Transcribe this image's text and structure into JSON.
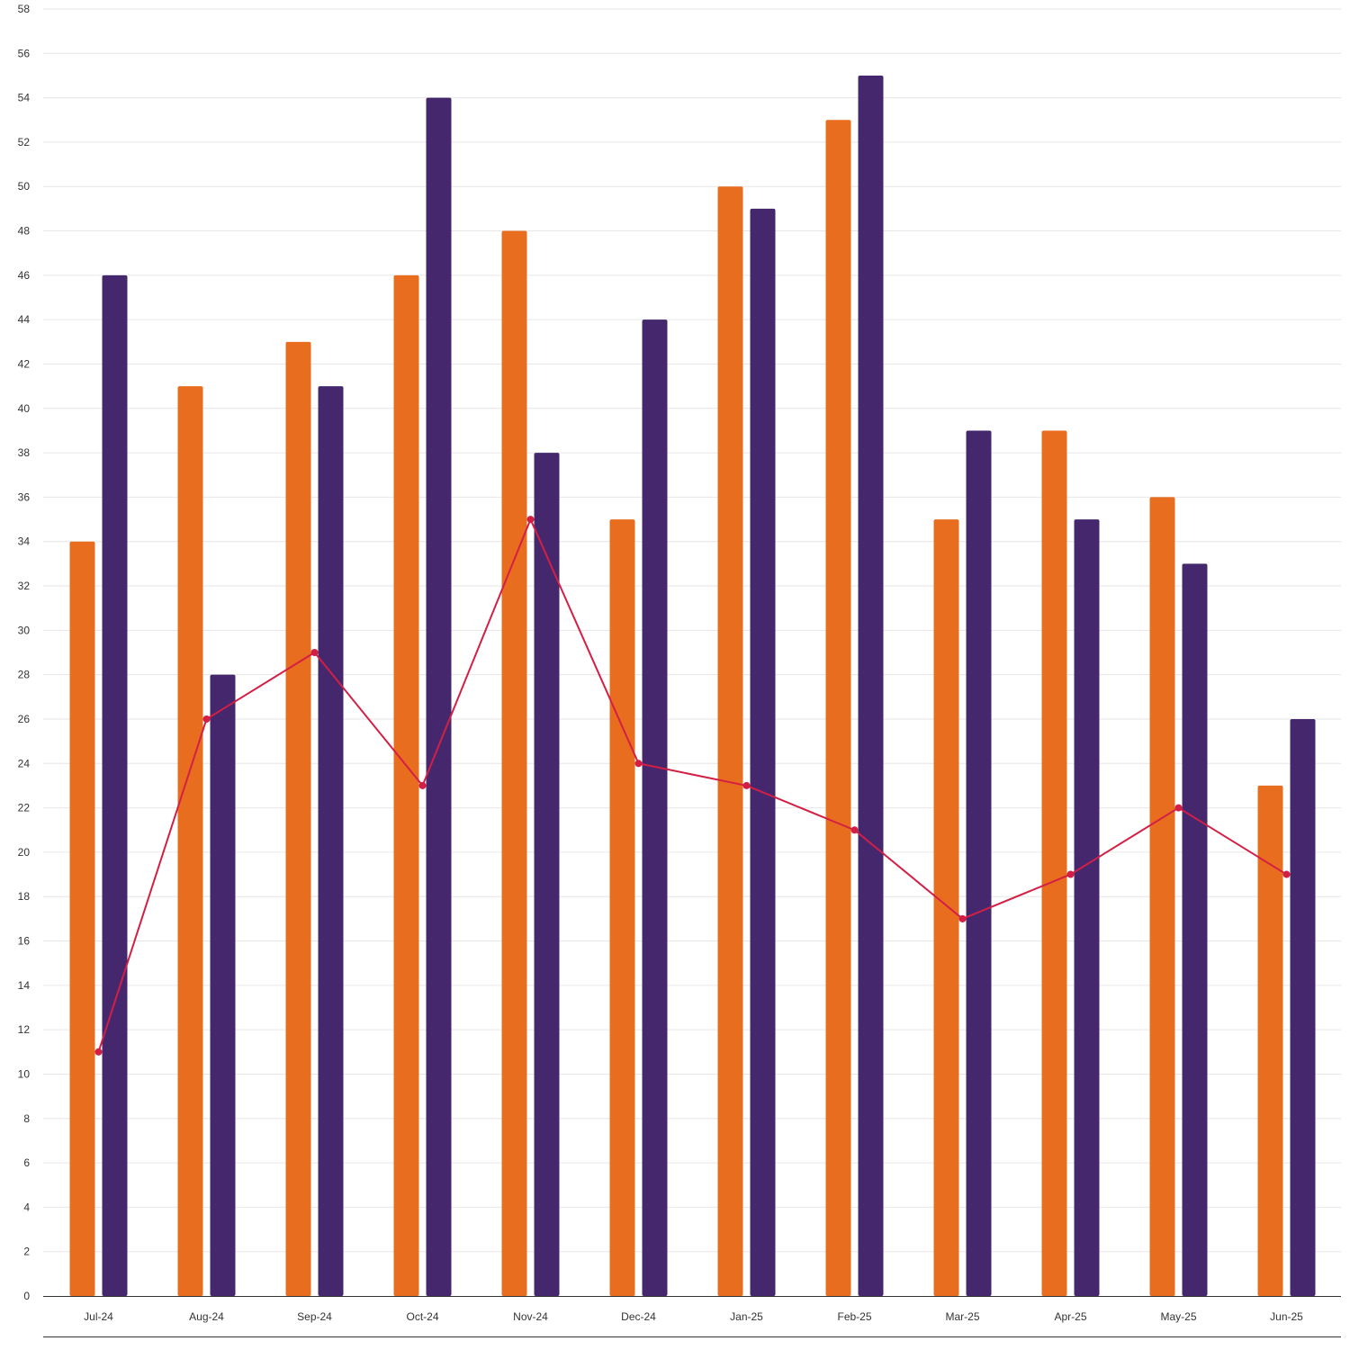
{
  "chart_data": {
    "type": "bar",
    "categories": [
      "Jul-24",
      "Aug-24",
      "Sep-24",
      "Oct-24",
      "Nov-24",
      "Dec-24",
      "Jan-25",
      "Feb-25",
      "Mar-25",
      "Apr-25",
      "May-25",
      "Jun-25"
    ],
    "series": [
      {
        "type": "bar",
        "color": "#e86d1f",
        "values": [
          34,
          41,
          43,
          46,
          48,
          35,
          50,
          53,
          35,
          39,
          36,
          23
        ]
      },
      {
        "type": "bar",
        "color": "#45276e",
        "values": [
          46,
          28,
          41,
          54,
          38,
          44,
          49,
          55,
          39,
          35,
          33,
          26
        ]
      },
      {
        "type": "line",
        "color": "#d41f45",
        "values": [
          11,
          26,
          29,
          23,
          35,
          24,
          23,
          21,
          17,
          19,
          22,
          19
        ]
      }
    ],
    "title": "",
    "xlabel": "",
    "ylabel": "",
    "ylim": [
      0,
      58
    ],
    "ytick_step": 2,
    "grid": true,
    "legend": "none",
    "gridline_color": "#e6e6e6",
    "axis_color": "#333333"
  }
}
